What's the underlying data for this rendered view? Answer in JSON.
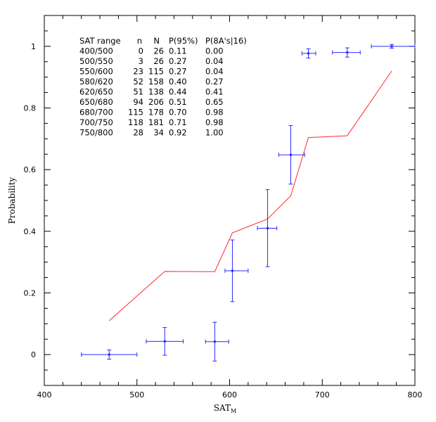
{
  "chart_data": {
    "type": "scatter",
    "xlabel_main": "SAT",
    "xlabel_sub": "M",
    "ylabel": "Probability",
    "xlim": [
      400,
      800
    ],
    "ylim": [
      -0.1,
      1.1
    ],
    "xticks": [
      400,
      500,
      600,
      700,
      800
    ],
    "xtick_labels": [
      "400",
      "500",
      "600",
      "700",
      "800"
    ],
    "yticks": [
      0,
      0.2,
      0.4,
      0.6,
      0.8,
      1
    ],
    "ytick_labels": [
      "0",
      "0.2",
      "0.4",
      "0.6",
      "0.8",
      "1"
    ],
    "x_minor_step": 20,
    "y_minor_step": 0.05,
    "colors": {
      "points": "#2a2aff",
      "model": "#ff2a2a",
      "axes": "#000000"
    },
    "series": [
      {
        "kind": "points_with_errorbars",
        "x": [
          470,
          530,
          584,
          603,
          641,
          666,
          685,
          727,
          775
        ],
        "y": [
          0.0,
          0.043,
          0.042,
          0.272,
          0.41,
          0.648,
          0.977,
          0.98,
          1.0
        ],
        "xerr_low": [
          30,
          20,
          10,
          8,
          11,
          13,
          7,
          16,
          22
        ],
        "xerr_high": [
          30,
          20,
          15,
          17,
          10,
          15,
          8,
          14,
          25
        ],
        "yerr_low": [
          0.015,
          0.045,
          0.063,
          0.1,
          0.125,
          0.095,
          0.015,
          0.015,
          0.006
        ],
        "yerr_high": [
          0.015,
          0.045,
          0.063,
          0.1,
          0.125,
          0.095,
          0.015,
          0.015,
          0.006
        ]
      },
      {
        "kind": "line",
        "x": [
          470,
          530,
          584,
          603,
          641,
          666,
          685,
          727,
          775
        ],
        "y": [
          0.11,
          0.27,
          0.269,
          0.395,
          0.44,
          0.515,
          0.704,
          0.71,
          0.92
        ]
      }
    ],
    "table": {
      "headers": [
        "SAT range",
        "n",
        "N",
        "P(95%)",
        "P(8A's|16)"
      ],
      "rows": [
        [
          "400/500",
          "0",
          "26",
          "0.11",
          "0.00"
        ],
        [
          "500/550",
          "3",
          "26",
          "0.27",
          "0.04"
        ],
        [
          "550/600",
          "23",
          "115",
          "0.27",
          "0.04"
        ],
        [
          "580/620",
          "52",
          "158",
          "0.40",
          "0.27"
        ],
        [
          "620/650",
          "51",
          "138",
          "0.44",
          "0.41"
        ],
        [
          "650/680",
          "94",
          "206",
          "0.51",
          "0.65"
        ],
        [
          "680/700",
          "115",
          "178",
          "0.70",
          "0.98"
        ],
        [
          "700/750",
          "118",
          "181",
          "0.71",
          "0.98"
        ],
        [
          "750/800",
          "28",
          "34",
          "0.92",
          "1.00"
        ]
      ]
    }
  }
}
